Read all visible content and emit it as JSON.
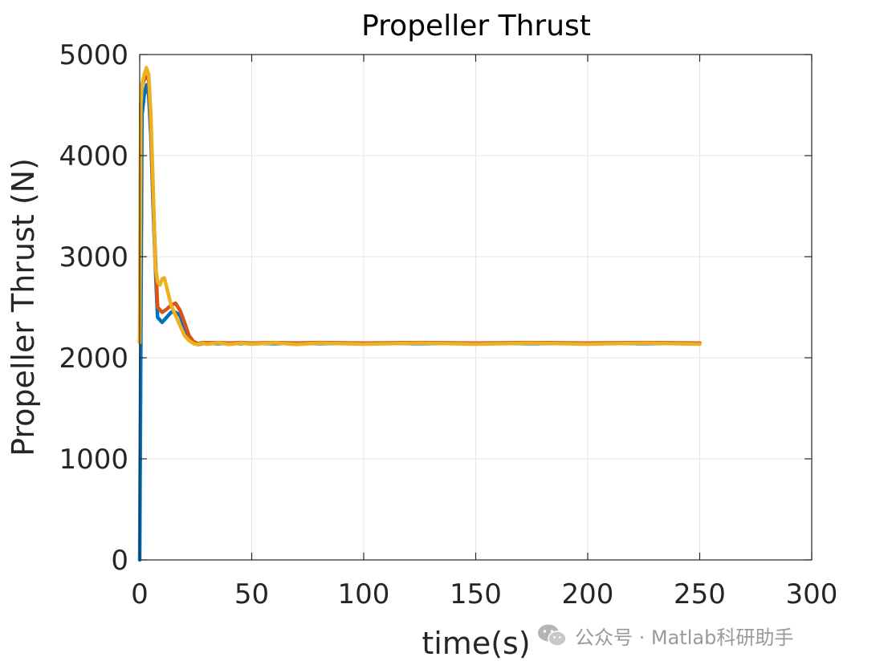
{
  "chart_data": {
    "type": "line",
    "title": "Propeller Thrust",
    "xlabel": "time(s)",
    "ylabel": "Propeller Thrust (N)",
    "xlim": [
      0,
      300
    ],
    "ylim": [
      0,
      5000
    ],
    "xticks": [
      0,
      50,
      100,
      150,
      200,
      250,
      300
    ],
    "yticks": [
      0,
      1000,
      2000,
      3000,
      4000,
      5000
    ],
    "grid": true,
    "series": [
      {
        "color": "#0072BD",
        "x": [
          0,
          0.5,
          1,
          2,
          3,
          4,
          5,
          6,
          7,
          8,
          10,
          12,
          14,
          16,
          18,
          20,
          22,
          24,
          26,
          28,
          30,
          35,
          40,
          45,
          50,
          60,
          70,
          80,
          100,
          125,
          150,
          175,
          200,
          225,
          250
        ],
        "y": [
          0,
          2150,
          4400,
          4600,
          4700,
          4600,
          4200,
          3500,
          2900,
          2400,
          2350,
          2400,
          2450,
          2450,
          2420,
          2300,
          2200,
          2150,
          2130,
          2140,
          2145,
          2140,
          2145,
          2140,
          2145,
          2140,
          2145,
          2140,
          2145,
          2140,
          2145,
          2140,
          2145,
          2140,
          2145
        ]
      },
      {
        "color": "#D95319",
        "x": [
          0,
          0.5,
          1,
          2,
          3,
          4,
          5,
          6,
          7,
          8,
          10,
          12,
          14,
          16,
          18,
          20,
          22,
          24,
          26,
          28,
          30,
          35,
          40,
          45,
          50,
          60,
          70,
          80,
          100,
          125,
          150,
          175,
          200,
          225,
          250
        ],
        "y": [
          2150,
          4500,
          4700,
          4750,
          4780,
          4750,
          4300,
          3600,
          3000,
          2500,
          2450,
          2480,
          2520,
          2540,
          2470,
          2350,
          2220,
          2160,
          2140,
          2150,
          2148,
          2150,
          2145,
          2150,
          2145,
          2150,
          2145,
          2150,
          2145,
          2150,
          2145,
          2150,
          2145,
          2150,
          2145
        ]
      },
      {
        "color": "#EDB120",
        "x": [
          0,
          0.5,
          1,
          2,
          3,
          4,
          5,
          6,
          7,
          8,
          9,
          10,
          11,
          12,
          14,
          16,
          18,
          20,
          22,
          24,
          26,
          28,
          30,
          35,
          40,
          45,
          50,
          60,
          70,
          80,
          100,
          125,
          150,
          175,
          200,
          225,
          250
        ],
        "y": [
          2150,
          4500,
          4700,
          4800,
          4870,
          4800,
          4400,
          3700,
          2900,
          2750,
          2720,
          2780,
          2790,
          2700,
          2520,
          2420,
          2320,
          2220,
          2170,
          2140,
          2130,
          2145,
          2135,
          2148,
          2132,
          2145,
          2135,
          2148,
          2132,
          2145,
          2135,
          2145,
          2135,
          2145,
          2135,
          2145,
          2135
        ]
      }
    ]
  },
  "watermark": {
    "icon": "wechat-icon",
    "text": "公众号 · Matlab科研助手"
  }
}
